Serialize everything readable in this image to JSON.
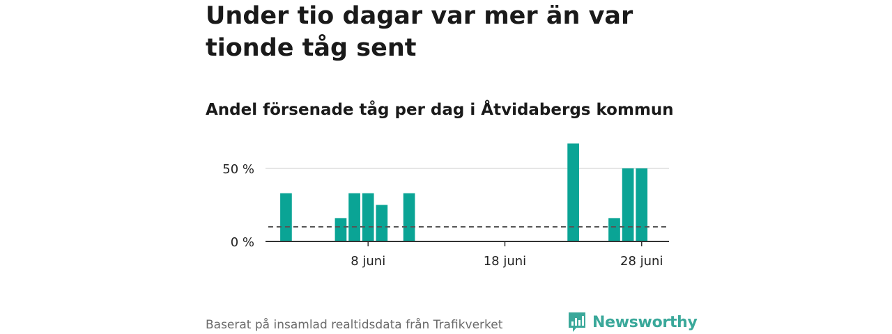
{
  "title": "Under tio dagar var mer än var tionde tåg sent",
  "subtitle": "Andel försenade tåg per dag i Åtvidabergs kommun",
  "source": "Baserat på insamlad realtidsdata från Trafikverket",
  "brand": "Newsworthy",
  "colors": {
    "bar": "#0aa495",
    "reference": "#555555",
    "grid": "#dddddd",
    "brand": "#3aa89a"
  },
  "chart_data": {
    "type": "bar",
    "x_unit": "day of June",
    "x": [
      1,
      2,
      3,
      4,
      5,
      6,
      7,
      8,
      9,
      10,
      11,
      12,
      13,
      14,
      15,
      16,
      17,
      18,
      19,
      20,
      21,
      22,
      23,
      24,
      25,
      26,
      27,
      28,
      29
    ],
    "values": [
      null,
      33,
      null,
      null,
      null,
      16,
      33,
      33,
      25,
      null,
      33,
      null,
      null,
      null,
      null,
      null,
      null,
      null,
      null,
      null,
      null,
      null,
      67,
      null,
      null,
      16,
      50,
      50,
      null
    ],
    "reference_line": {
      "value": 10,
      "style": "dashed"
    },
    "y_ticks": [
      {
        "value": 0,
        "label": "0 %"
      },
      {
        "value": 50,
        "label": "50 %"
      }
    ],
    "x_ticks": [
      {
        "value": 8,
        "label": "8 juni"
      },
      {
        "value": 18,
        "label": "18 juni"
      },
      {
        "value": 28,
        "label": "28 juni"
      }
    ],
    "ylim": [
      0,
      70
    ],
    "xlim": [
      0.5,
      30
    ]
  }
}
